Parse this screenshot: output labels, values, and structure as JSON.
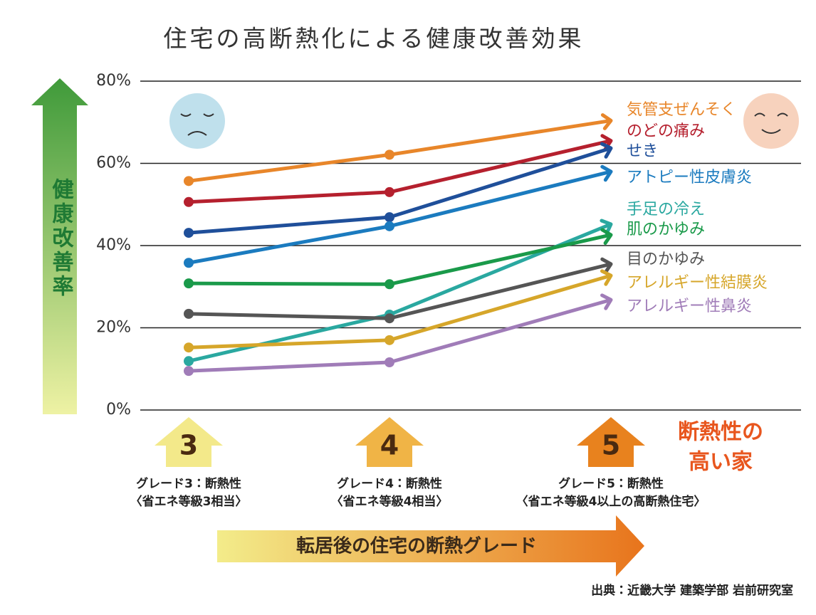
{
  "chart_data": {
    "type": "line",
    "title": "住宅の高断熱化による健康改善効果",
    "y_label": "健康改善率",
    "x_label": "転居後の住宅の断熱グレード",
    "categories": [
      "3",
      "4",
      "5"
    ],
    "category_labels": [
      [
        "グレード3：断熱性",
        "〈省エネ等級3相当〉"
      ],
      [
        "グレード4：断熱性",
        "〈省エネ等級4相当〉"
      ],
      [
        "グレード5：断熱性",
        "〈省エネ等級4以上の高断熱住宅〉"
      ]
    ],
    "annotation": [
      "断熱性の",
      "高い家"
    ],
    "source": "出典：近畿大学 建築学部 岩前研究室",
    "ylim": [
      0,
      80
    ],
    "yticks": [
      {
        "value": 0,
        "label": "0%"
      },
      {
        "value": 20,
        "label": "20%"
      },
      {
        "value": 40,
        "label": "40%"
      },
      {
        "value": 60,
        "label": "60%"
      },
      {
        "value": 80,
        "label": "80%"
      }
    ],
    "grid": true,
    "series": [
      {
        "name": "気管支ぜんそく",
        "color": "#e8862a",
        "values": [
          55.7,
          62.1,
          70.4
        ]
      },
      {
        "name": "のどの痛み",
        "color": "#b5202e",
        "values": [
          50.6,
          53.0,
          65.5
        ]
      },
      {
        "name": "せき",
        "color": "#1f4f9a",
        "values": [
          43.1,
          46.9,
          63.7
        ]
      },
      {
        "name": "アトピー性皮膚炎",
        "color": "#1b7bbf",
        "values": [
          35.8,
          44.7,
          58.0
        ]
      },
      {
        "name": "手足の冷え",
        "color": "#2aa8a0",
        "values": [
          11.9,
          23.2,
          45.2
        ]
      },
      {
        "name": "肌のかゆみ",
        "color": "#1a9a4a",
        "values": [
          30.8,
          30.6,
          42.6
        ]
      },
      {
        "name": "目のかゆみ",
        "color": "#555555",
        "values": [
          23.4,
          22.3,
          35.5
        ]
      },
      {
        "name": "アレルギー性結膜炎",
        "color": "#d6a62a",
        "values": [
          15.2,
          17.0,
          32.7
        ]
      },
      {
        "name": "アレルギー性鼻炎",
        "color": "#a07cb8",
        "values": [
          9.5,
          11.6,
          26.8
        ]
      }
    ]
  }
}
